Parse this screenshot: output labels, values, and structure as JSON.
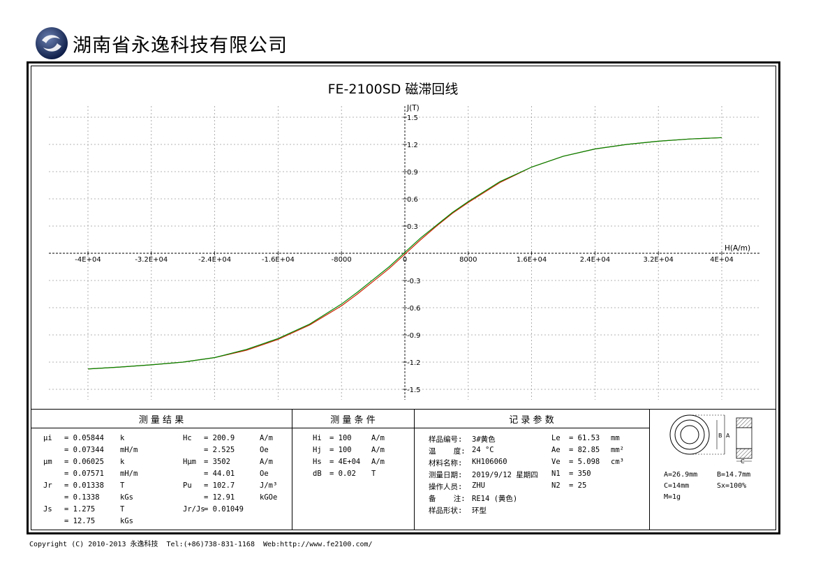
{
  "company": "湖南省永逸科技有限公司",
  "copyright": "Copyright (C) 2010-2013 永逸科技  Tel:(+86)738-831-1168  Web:http://www.fe2100.com/",
  "chart_data": {
    "type": "line",
    "title": "FE-2100SD 磁滞回线",
    "xlabel": "H(A/m)",
    "ylabel": "J(T)",
    "xlim": [
      -44000,
      44000
    ],
    "ylim": [
      -1.6,
      1.6
    ],
    "x_ticks": [
      -40000,
      -32000,
      -24000,
      -16000,
      -8000,
      0,
      8000,
      16000,
      24000,
      32000,
      40000
    ],
    "x_tick_labels": [
      "-4E+04",
      "-3.2E+04",
      "-2.4E+04",
      "-1.6E+04",
      "-8000",
      "0",
      "8000",
      "1.6E+04",
      "2.4E+04",
      "3.2E+04",
      "4E+04"
    ],
    "y_ticks": [
      1.5,
      1.2,
      0.9,
      0.6,
      0.3,
      -0.3,
      -0.6,
      -0.9,
      -1.2,
      -1.5
    ],
    "y_tick_labels": [
      "1.5",
      "1.2",
      "0.9",
      "0.6",
      "0.3",
      "-0.3",
      "-0.6",
      "-0.9",
      "-1.2",
      "-1.5"
    ],
    "grid": true,
    "series": [
      {
        "color": "#cc2200",
        "x": [
          -40000,
          -36000,
          -32000,
          -28000,
          -24000,
          -20000,
          -16000,
          -12000,
          -8000,
          -6000,
          -4000,
          -2000,
          0,
          2000,
          4000,
          6000,
          8000,
          12000,
          16000,
          20000,
          24000,
          28000,
          32000,
          36000,
          40000
        ],
        "y": [
          -1.275,
          -1.255,
          -1.23,
          -1.2,
          -1.15,
          -1.07,
          -0.95,
          -0.79,
          -0.58,
          -0.45,
          -0.31,
          -0.17,
          -0.01,
          0.15,
          0.3,
          0.44,
          0.56,
          0.78,
          0.95,
          1.07,
          1.15,
          1.2,
          1.235,
          1.26,
          1.275
        ]
      },
      {
        "color": "#008800",
        "x": [
          -40000,
          -36000,
          -32000,
          -28000,
          -24000,
          -20000,
          -16000,
          -12000,
          -8000,
          -6000,
          -4000,
          -2000,
          0,
          2000,
          4000,
          6000,
          8000,
          12000,
          16000,
          20000,
          24000,
          28000,
          32000,
          36000,
          40000
        ],
        "y": [
          -1.275,
          -1.255,
          -1.23,
          -1.2,
          -1.15,
          -1.06,
          -0.94,
          -0.78,
          -0.56,
          -0.43,
          -0.29,
          -0.15,
          0.01,
          0.17,
          0.31,
          0.45,
          0.57,
          0.79,
          0.95,
          1.07,
          1.15,
          1.2,
          1.235,
          1.26,
          1.275
        ]
      }
    ]
  },
  "sections": {
    "results_title": "测    量    结    果",
    "conditions_title": "测    量    条    件",
    "params_title": "记    录    参    数"
  },
  "results": [
    [
      "μi",
      "= 0.05844",
      "k",
      "Hc",
      "= 200.9",
      "A/m"
    ],
    [
      "",
      "= 0.07344",
      "mH/m",
      "",
      "= 2.525",
      "Oe"
    ],
    [
      "μm",
      "= 0.06025",
      "k",
      "Hμm",
      "= 3502",
      "A/m"
    ],
    [
      "",
      "= 0.07571",
      "mH/m",
      "",
      "= 44.01",
      "Oe"
    ],
    [
      "Jr",
      "= 0.01338",
      "T",
      "Pu",
      "= 102.7",
      "J/m³"
    ],
    [
      "",
      "= 0.1338",
      "kGs",
      "",
      "= 12.91",
      "kGOe"
    ],
    [
      "Js",
      "= 1.275",
      "T",
      "Jr/Js",
      "= 0.01049",
      ""
    ],
    [
      "",
      "= 12.75",
      "kGs",
      "",
      "",
      ""
    ]
  ],
  "conditions": [
    [
      "Hi",
      "= 100",
      "A/m"
    ],
    [
      "Hj",
      "= 100",
      "A/m"
    ],
    [
      "Hs",
      "= 4E+04",
      "A/m"
    ],
    [
      "dB",
      "= 0.02",
      "T"
    ]
  ],
  "params_left": [
    [
      "样品编号:",
      "3#黄色"
    ],
    [
      "温    度:",
      "24 °C"
    ],
    [
      "材料名称:",
      "KH106060"
    ],
    [
      "测量日期:",
      "2019/9/12 星期四"
    ],
    [
      "操作人员:",
      "ZHU"
    ],
    [
      "备    注:",
      "RE14 (黄色)"
    ],
    [
      "样品形状:",
      "环型"
    ]
  ],
  "params_right": [
    [
      "Le",
      "= 61.53",
      "mm"
    ],
    [
      "Ae",
      "= 82.85",
      "mm²"
    ],
    [
      "Ve",
      "= 5.098",
      "cm³"
    ],
    [
      "N1",
      "= 350",
      ""
    ],
    [
      "N2",
      "= 25",
      ""
    ]
  ],
  "dims": {
    "a": "A=26.9mm",
    "b": "B=14.7mm",
    "c": "C=14mm",
    "sx": "Sx=100%",
    "m": "M=1g",
    "label_a": "A",
    "label_b": "B",
    "label_c": "C"
  }
}
